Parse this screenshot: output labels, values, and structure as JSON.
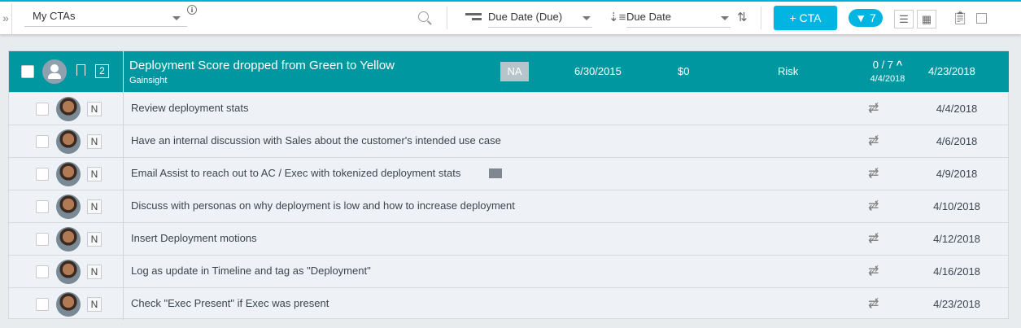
{
  "toolbar": {
    "view_select": "My CTAs",
    "sort1": "Due Date (Due)",
    "sort2": "Due Date",
    "cta_button": "+ CTA",
    "filter_count": "7"
  },
  "cta": {
    "title": "Deployment Score dropped from Green to Yellow",
    "company": "Gainsight",
    "badge_count": "2",
    "status_badge": "NA",
    "due": "6/30/2015",
    "amount": "$0",
    "type": "Risk",
    "progress": "0 / 7",
    "progress_date": "4/4/2018",
    "date": "4/23/2018"
  },
  "tasks": [
    {
      "label": "Review deployment stats",
      "priority": "N",
      "date": "4/4/2018"
    },
    {
      "label": "Have an internal discussion with Sales about the customer's intended use case",
      "priority": "N",
      "date": "4/6/2018"
    },
    {
      "label": "Email Assist to reach out to AC / Exec with tokenized deployment stats",
      "priority": "N",
      "date": "4/9/2018",
      "email": true
    },
    {
      "label": "Discuss with personas on why deployment is low and how to increase deployment",
      "priority": "N",
      "date": "4/10/2018"
    },
    {
      "label": "Insert Deployment motions",
      "priority": "N",
      "date": "4/12/2018"
    },
    {
      "label": "Log as update in Timeline and tag as \"Deployment\"",
      "priority": "N",
      "date": "4/16/2018"
    },
    {
      "label": "Check \"Exec Present\" if Exec was present",
      "priority": "N",
      "date": "4/23/2018"
    }
  ]
}
